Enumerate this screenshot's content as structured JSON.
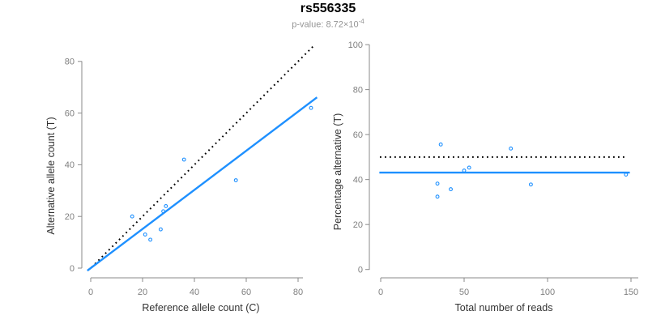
{
  "header": {
    "title": "rs556335",
    "pvalue_prefix": "p-value: 8.72",
    "times_symbol": "×",
    "pvalue_base": "10",
    "pvalue_exponent": "-4"
  },
  "colors": {
    "accent_blue": "#1E90FF",
    "reference_black": "#000000",
    "axis_gray": "#8a8a8a"
  },
  "chart_data": [
    {
      "type": "scatter",
      "title": "",
      "xlabel": "Reference allele count (C)",
      "ylabel": "Alternative allele count (T)",
      "xlim": [
        0,
        85
      ],
      "ylim": [
        0,
        85
      ],
      "xticks": [
        0,
        20,
        40,
        60,
        80
      ],
      "yticks": [
        0,
        20,
        40,
        60,
        80
      ],
      "grid": false,
      "legend": "none",
      "point_color": "#1E90FF",
      "points": [
        [
          16,
          20
        ],
        [
          21,
          13
        ],
        [
          23,
          11
        ],
        [
          27,
          15
        ],
        [
          28,
          22
        ],
        [
          29,
          24
        ],
        [
          36,
          42
        ],
        [
          56,
          34
        ],
        [
          85,
          62
        ]
      ],
      "lines": [
        {
          "name": "identity-line",
          "slope": 1,
          "intercept": 0,
          "style": "dotted",
          "color": "#000000"
        },
        {
          "name": "fit-line",
          "slope": 0.757,
          "intercept": 0,
          "style": "solid",
          "color": "#1E90FF"
        }
      ]
    },
    {
      "type": "scatter",
      "title": "",
      "xlabel": "Total number of reads",
      "ylabel": "Percentage alternative (T)",
      "xlim": [
        0,
        150
      ],
      "ylim": [
        0,
        100
      ],
      "xticks": [
        0,
        50,
        100,
        150
      ],
      "yticks": [
        0,
        20,
        40,
        60,
        80,
        100
      ],
      "grid": false,
      "legend": "none",
      "point_color": "#1E90FF",
      "points": [
        [
          36,
          55.6
        ],
        [
          34,
          38.2
        ],
        [
          34,
          32.4
        ],
        [
          42,
          35.7
        ],
        [
          50,
          44.0
        ],
        [
          53,
          45.3
        ],
        [
          78,
          53.8
        ],
        [
          90,
          37.8
        ],
        [
          147,
          42.2
        ]
      ],
      "lines": [
        {
          "name": "reference-50pct-line",
          "hline": 50,
          "style": "dotted",
          "color": "#000000"
        },
        {
          "name": "overall-pct-line",
          "hline": 43.1,
          "style": "solid",
          "color": "#1E90FF"
        }
      ]
    }
  ]
}
